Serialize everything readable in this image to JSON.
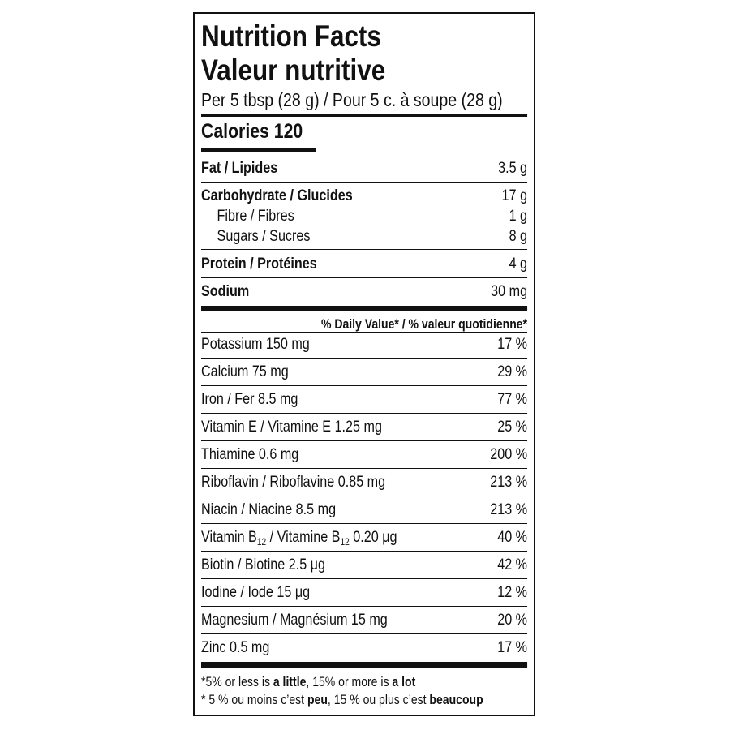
{
  "title_en": "Nutrition Facts",
  "title_fr": "Valeur nutritive",
  "serving": "Per 5 tbsp (28 g) / Pour 5 c. à soupe (28 g)",
  "calories": "Calories 120",
  "nutrients": [
    {
      "label": "Fat / Lipides",
      "value": "3.5 g"
    },
    {
      "label": "Carbohydrate / Glucides",
      "value": "17 g"
    },
    {
      "label": "Fibre / Fibres",
      "value": "1 g"
    },
    {
      "label": "Sugars / Sucres",
      "value": "8 g"
    },
    {
      "label": "Protein / Protéines",
      "value": "4 g"
    },
    {
      "label": "Sodium",
      "value": "30 mg"
    }
  ],
  "dv_header": "% Daily Value* / % valeur quotidienne*",
  "dv": [
    {
      "label": "Potassium 150 mg",
      "value": "17 %"
    },
    {
      "label": "Calcium 75 mg",
      "value": "29 %"
    },
    {
      "label": "Iron / Fer 8.5 mg",
      "value": "77 %"
    },
    {
      "label": "Vitamin E / Vitamine E 1.25 mg",
      "value": "25 %"
    },
    {
      "label": "Thiamine 0.6 mg",
      "value": "200 %"
    },
    {
      "label": "Riboflavin / Riboflavine 0.85 mg",
      "value": "213 %"
    },
    {
      "label": "Niacin / Niacine 8.5 mg",
      "value": "213 %"
    },
    {
      "label_a": "Vitamin B",
      "sub": "12",
      "label_b": " / Vitamine B",
      "label_c": " 0.20 μg",
      "value": "40 %"
    },
    {
      "label": "Biotin / Biotine 2.5 μg",
      "value": "42 %"
    },
    {
      "label": "Iodine / Iode 15 μg",
      "value": "12 %"
    },
    {
      "label": "Magnesium / Magnésium 15 mg",
      "value": "20 %"
    },
    {
      "label": "Zinc 0.5 mg",
      "value": "17 %"
    }
  ],
  "footer": {
    "en_1": "*5% or less is ",
    "en_2": "a little",
    "en_3": ", 15% or more is ",
    "en_4": "a lot",
    "fr_1": "* 5 % ou moins c’est ",
    "fr_2": "peu",
    "fr_3": ", 15 % ou plus c’est ",
    "fr_4": "beaucoup"
  }
}
